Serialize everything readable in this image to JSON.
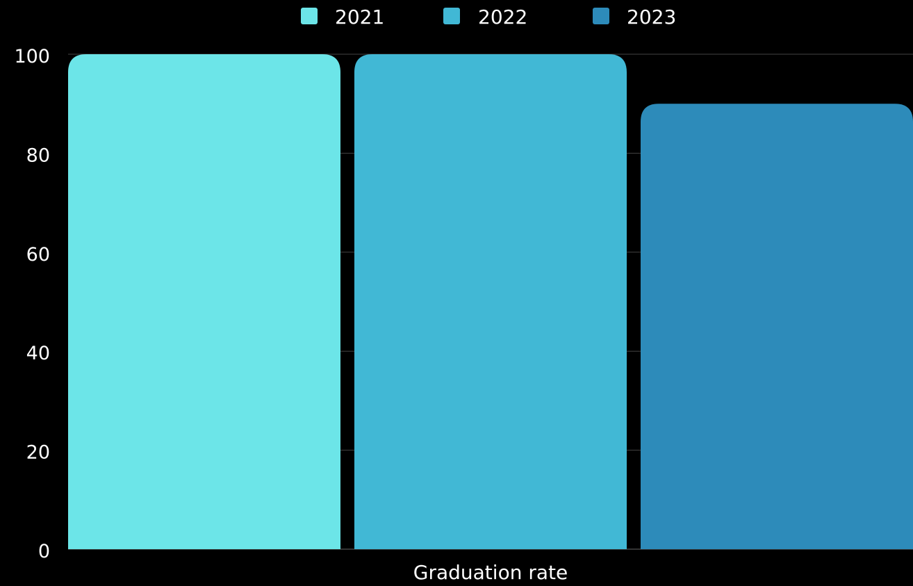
{
  "chart_data": {
    "type": "bar",
    "categories": [
      "Graduation rate"
    ],
    "series": [
      {
        "name": "2021",
        "values": [
          100
        ],
        "color": "#6ce5e8"
      },
      {
        "name": "2022",
        "values": [
          100
        ],
        "color": "#41b8d5"
      },
      {
        "name": "2023",
        "values": [
          90
        ],
        "color": "#2d8bba"
      }
    ],
    "ylim": [
      0,
      100
    ],
    "yticks": [
      0,
      20,
      40,
      60,
      80,
      100
    ],
    "grid": true,
    "legend_position": "top"
  },
  "colors": {
    "background": "#000000",
    "text": "#ffffff",
    "grid": "#444444"
  }
}
